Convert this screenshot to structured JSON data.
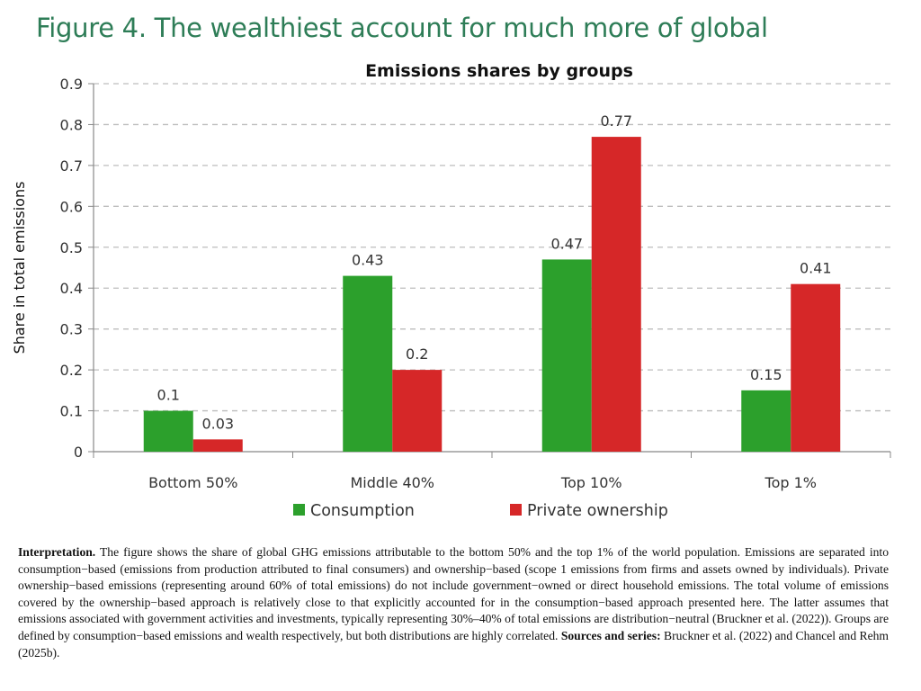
{
  "figure_heading": "Figure 4. The wealthiest account for much more of global",
  "chart_data": {
    "type": "bar",
    "title": "Emissions shares by groups",
    "ylabel": "Share in  total emissions",
    "xlabel": "",
    "categories": [
      "Bottom 50%",
      "Middle 40%",
      "Top 10%",
      "Top 1%"
    ],
    "series": [
      {
        "name": "Consumption",
        "values": [
          0.1,
          0.43,
          0.47,
          0.15
        ],
        "color": "#2ca02c"
      },
      {
        "name": "Private ownership",
        "values": [
          0.03,
          0.2,
          0.77,
          0.41
        ],
        "color": "#d62728"
      }
    ],
    "ylim": [
      0,
      0.9
    ],
    "yticks": [
      "0",
      "0.1",
      "0.2",
      "0.3",
      "0.4",
      "0.5",
      "0.6",
      "0.7",
      "0.8",
      "0.9"
    ],
    "grid": true,
    "legend": "bottom"
  },
  "note": {
    "lead": "Interpretation.",
    "body": " The figure shows the share of global GHG emissions attributable to the bottom 50% and the top 1% of the world population. Emissions are separated into consumption−based (emissions from production attributed to final consumers) and ownership−based (scope 1 emissions from firms and assets owned by individuals). Private ownership−based emissions (representing around 60% of total emissions) do not include government−owned or direct household emissions. The total volume of emissions covered by the ownership−based approach is relatively close to that explicitly accounted for in the consumption−based approach presented here. The latter assumes that emissions associated with government activities and investments, typically representing 30%–40% of total emissions are distribution−neutral (Bruckner et al. (2022)). Groups are defined by consumption−based emissions and wealth respectively, but both distributions are highly correlated. ",
    "sources_label": "Sources and series:",
    "sources_text": " Bruckner et al. (2022) and Chancel and Rehm (2025b)."
  }
}
